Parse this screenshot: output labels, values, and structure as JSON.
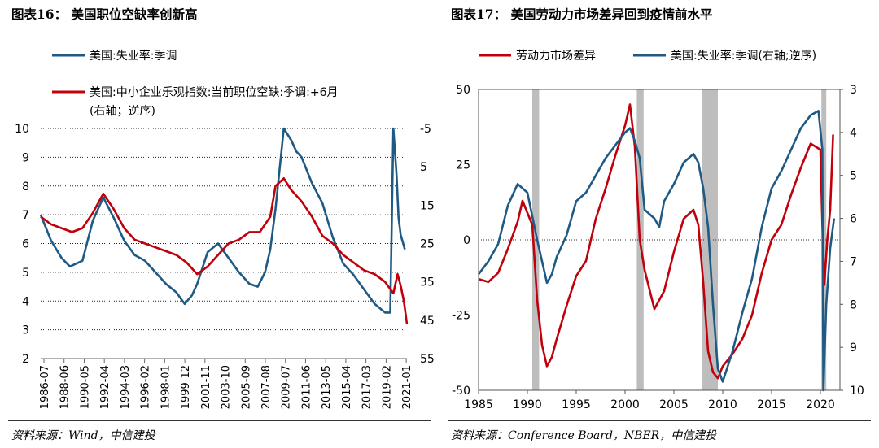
{
  "left": {
    "title": "图表16：  美国职位空缺率创新高",
    "source": "资料来源：Wind，中信建投",
    "legend": [
      {
        "label": "美国:失业率:季调",
        "color": "#1f5a85"
      },
      {
        "label": "美国:中小企业乐观指数:当前职位空缺:季调:+6月",
        "label2": "(右轴；逆序)",
        "color": "#c0000b"
      }
    ]
  },
  "right": {
    "title": "图表17：  美国劳动力市场差异回到疫情前水平",
    "source": "资料来源：Conference Board，NBER，中信建投",
    "legend": [
      {
        "label": "劳动力市场差异",
        "color": "#c0000b"
      },
      {
        "label": "美国:失业率:季调(右轴;逆序)",
        "color": "#1f5a85"
      }
    ]
  },
  "chart_data": [
    {
      "type": "line",
      "title": "美国职位空缺率创新高",
      "x_tick_labels": [
        "1986-07",
        "1988-06",
        "1990-05",
        "1992-04",
        "1994-03",
        "1996-02",
        "1998-01",
        "1999-12",
        "2001-11",
        "2003-10",
        "2005-09",
        "2007-08",
        "2009-07",
        "2011-06",
        "2013-05",
        "2015-04",
        "2017-03",
        "2019-02",
        "2021-01"
      ],
      "y_left": {
        "range": [
          2,
          10
        ],
        "ticks": [
          2,
          3,
          4,
          5,
          6,
          7,
          8,
          9,
          10
        ]
      },
      "y_right": {
        "range": [
          -5,
          55
        ],
        "inverted": true,
        "ticks": [
          -5,
          5,
          15,
          25,
          35,
          45,
          55
        ]
      },
      "grid": "horizontal dotted",
      "series": [
        {
          "name": "美国:失业率:季调",
          "axis": "left",
          "color": "#1f5a85",
          "x": [
            1986.5,
            1987.5,
            1988.5,
            1989.3,
            1990.5,
            1991.5,
            1992.5,
            1993.5,
            1994.5,
            1995.5,
            1996.5,
            1997.5,
            1998.5,
            1999.5,
            2000.3,
            2001.0,
            2001.5,
            2002.5,
            2003.5,
            2004.5,
            2005.5,
            2006.5,
            2007.3,
            2008.0,
            2008.5,
            2009.0,
            2009.8,
            2010.5,
            2011.0,
            2011.5,
            2012.5,
            2013.5,
            2014.5,
            2015.5,
            2016.5,
            2017.5,
            2018.5,
            2019.5,
            2020.0,
            2020.3,
            2020.6,
            2020.8,
            2021.0,
            2021.4
          ],
          "values": [
            7.0,
            6.1,
            5.5,
            5.2,
            5.4,
            6.8,
            7.6,
            6.9,
            6.1,
            5.6,
            5.4,
            5.0,
            4.6,
            4.3,
            3.9,
            4.2,
            4.6,
            5.7,
            6.0,
            5.5,
            5.0,
            4.6,
            4.5,
            5.0,
            5.8,
            7.2,
            10.0,
            9.6,
            9.2,
            9.0,
            8.1,
            7.4,
            6.2,
            5.3,
            4.9,
            4.4,
            3.9,
            3.6,
            3.6,
            10.0,
            8.4,
            6.9,
            6.3,
            5.8
          ]
        },
        {
          "name": "美国:中小企业乐观指数:当前职位空缺:季调:+6月",
          "axis": "right",
          "color": "#c0000b",
          "x": [
            1986.5,
            1987.5,
            1988.5,
            1989.5,
            1990.5,
            1991.5,
            1992.5,
            1993.5,
            1994.5,
            1995.5,
            1996.5,
            1997.5,
            1998.5,
            1999.5,
            2000.5,
            2001.5,
            2002.5,
            2003.5,
            2004.5,
            2005.5,
            2006.5,
            2007.5,
            2008.5,
            2009.0,
            2009.8,
            2010.5,
            2011.5,
            2012.5,
            2013.5,
            2014.5,
            2015.5,
            2016.5,
            2017.5,
            2018.5,
            2019.5,
            2020.3,
            2020.7,
            2021.0,
            2021.3,
            2021.6
          ],
          "values": [
            18,
            20,
            21,
            22,
            21,
            17,
            12,
            16,
            21,
            24,
            25,
            26,
            27,
            28,
            30,
            33,
            31,
            28,
            25,
            24,
            22,
            22,
            18,
            10,
            8,
            11,
            14,
            18,
            23,
            25,
            28,
            30,
            32,
            33,
            35,
            38,
            33,
            36,
            40,
            46
          ]
        }
      ]
    },
    {
      "type": "line",
      "title": "美国劳动力市场差异回到疫情前水平",
      "x_ticks": [
        1985,
        1990,
        1995,
        2000,
        2005,
        2010,
        2015,
        2020
      ],
      "xlim": [
        1985,
        2022
      ],
      "y_left": {
        "range": [
          -50,
          50
        ],
        "ticks": [
          -50,
          -25,
          0,
          25,
          50
        ]
      },
      "y_right": {
        "range": [
          3,
          10
        ],
        "inverted": true,
        "ticks": [
          3,
          4,
          5,
          6,
          7,
          8,
          9,
          10
        ]
      },
      "recessions": [
        [
          1990.5,
          1991.2
        ],
        [
          2001.2,
          2001.9
        ],
        [
          2007.9,
          2009.5
        ],
        [
          2020.1,
          2020.4
        ]
      ],
      "series": [
        {
          "name": "劳动力市场差异",
          "axis": "left",
          "color": "#c0000b",
          "x": [
            1985.0,
            1986.0,
            1987.0,
            1988.0,
            1989.0,
            1989.5,
            1990.0,
            1990.5,
            1991.0,
            1991.5,
            1992.0,
            1992.5,
            1993.0,
            1994.0,
            1995.0,
            1996.0,
            1997.0,
            1998.0,
            1999.0,
            2000.0,
            2000.5,
            2001.0,
            2001.5,
            2002.0,
            2003.0,
            2004.0,
            2005.0,
            2006.0,
            2007.0,
            2007.5,
            2008.0,
            2008.5,
            2009.0,
            2009.5,
            2010.0,
            2011.0,
            2012.0,
            2013.0,
            2014.0,
            2015.0,
            2016.0,
            2017.0,
            2018.0,
            2019.0,
            2020.0,
            2020.2,
            2020.4,
            2020.7,
            2021.0,
            2021.3
          ],
          "values": [
            -13,
            -14,
            -11,
            -3,
            6,
            13,
            9,
            5,
            -20,
            -35,
            -42,
            -39,
            -33,
            -22,
            -12,
            -7,
            7,
            17,
            28,
            38,
            45,
            31,
            0,
            -10,
            -23,
            -17,
            -4,
            7,
            10,
            5,
            -14,
            -37,
            -44,
            -46,
            -42,
            -38,
            -33,
            -25,
            -11,
            0,
            5,
            15,
            24,
            32,
            30,
            5,
            -15,
            0,
            10,
            35
          ]
        },
        {
          "name": "美国:失业率:季调(右轴;逆序)",
          "axis": "right",
          "color": "#1f5a85",
          "x": [
            1985.0,
            1986.0,
            1987.0,
            1988.0,
            1989.0,
            1990.0,
            1991.0,
            1991.5,
            1992.0,
            1992.5,
            1993.0,
            1994.0,
            1995.0,
            1996.0,
            1997.0,
            1998.0,
            1999.0,
            2000.0,
            2000.5,
            2001.0,
            2001.5,
            2002.0,
            2003.0,
            2003.5,
            2004.0,
            2005.0,
            2006.0,
            2007.0,
            2007.5,
            2008.0,
            2008.5,
            2009.0,
            2009.5,
            2010.0,
            2011.0,
            2012.0,
            2013.0,
            2014.0,
            2015.0,
            2016.0,
            2017.0,
            2018.0,
            2019.0,
            2019.8,
            2020.2,
            2020.3,
            2020.6,
            2021.0,
            2021.4
          ],
          "values": [
            7.3,
            7.0,
            6.6,
            5.7,
            5.2,
            5.4,
            6.5,
            7.0,
            7.5,
            7.3,
            6.9,
            6.4,
            5.6,
            5.4,
            5.0,
            4.6,
            4.3,
            4.0,
            3.9,
            4.2,
            4.6,
            5.8,
            6.0,
            6.2,
            5.6,
            5.2,
            4.7,
            4.5,
            4.7,
            5.3,
            6.2,
            8.0,
            9.5,
            9.8,
            9.1,
            8.2,
            7.4,
            6.2,
            5.3,
            4.9,
            4.4,
            3.9,
            3.6,
            3.5,
            4.4,
            10.0,
            8.0,
            6.7,
            6.0
          ]
        }
      ]
    }
  ]
}
